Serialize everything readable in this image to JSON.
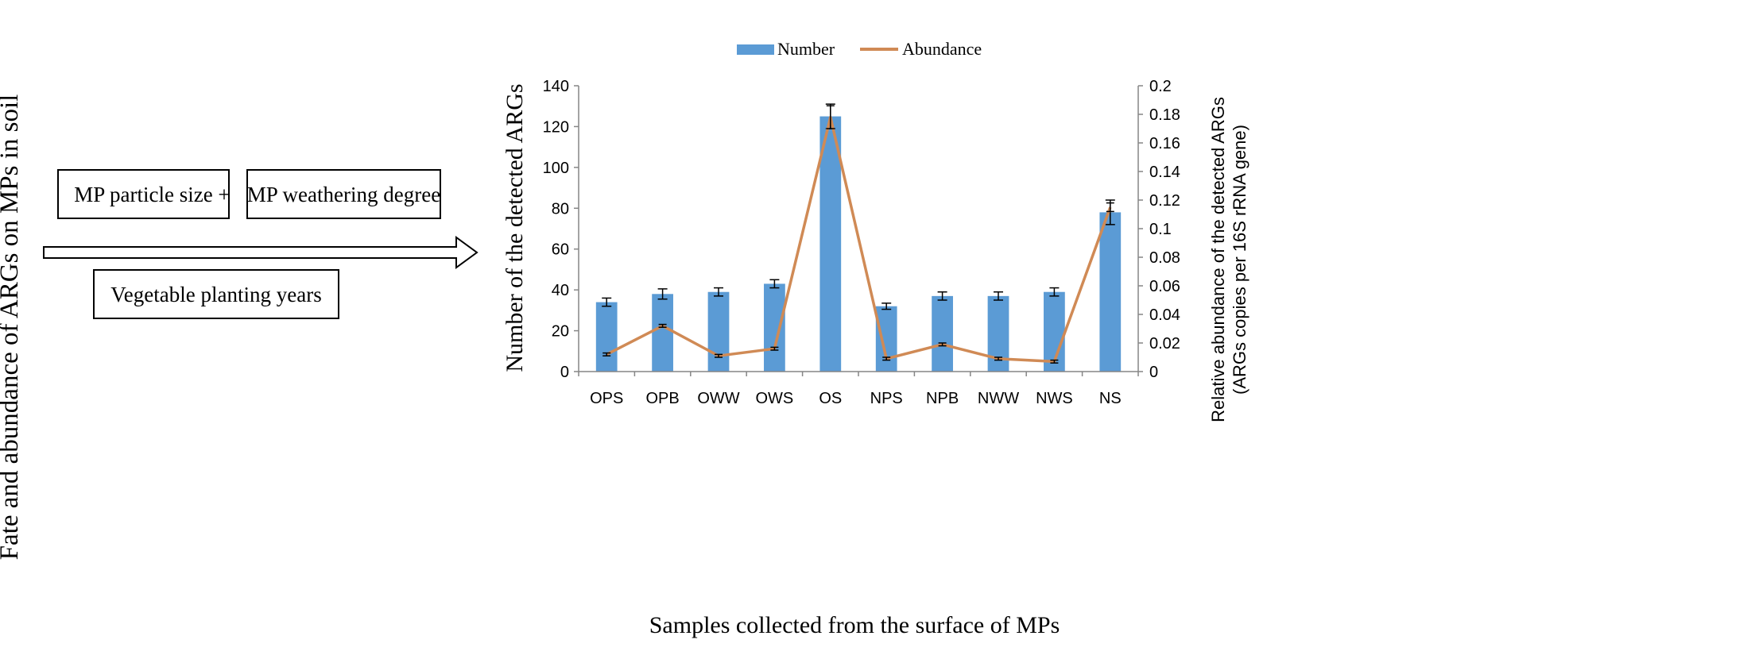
{
  "diagram": {
    "side_title": "Fate and abundance of ARGs on MPs in soil",
    "box1": "MP particle size",
    "plus": "+",
    "box2": "MP weathering degree",
    "box3": "Vegetable planting years"
  },
  "chart_data": {
    "type": "bar",
    "title": "",
    "xlabel": "Samples collected from the surface of MPs",
    "ylabel": "Number of the detected ARGs",
    "y2label_line1": "Relative abundance of the detected ARGs",
    "y2label_line2": "(ARGs copies per 16S rRNA gene)",
    "categories": [
      "OPS",
      "OPB",
      "OWW",
      "OWS",
      "OS",
      "NPS",
      "NPB",
      "NWW",
      "NWS",
      "NS"
    ],
    "ylim": [
      0,
      140
    ],
    "yticks": [
      0,
      20,
      40,
      60,
      80,
      100,
      120,
      140
    ],
    "y2lim": [
      0,
      0.2
    ],
    "y2ticks": [
      "0",
      "0.02",
      "0.04",
      "0.06",
      "0.08",
      "0.1",
      "0.12",
      "0.14",
      "0.16",
      "0.18",
      "0.2"
    ],
    "legend_position": "top",
    "series": [
      {
        "name": "Number",
        "kind": "bar",
        "axis": "left",
        "color": "#5b9bd5",
        "values": [
          34,
          38,
          39,
          43,
          125,
          32,
          37,
          37,
          39,
          78
        ],
        "errors": [
          2,
          2.5,
          2,
          2,
          6,
          1.5,
          2,
          2,
          2,
          6
        ]
      },
      {
        "name": "Abundance",
        "kind": "line",
        "axis": "right",
        "color": "#d08a55",
        "values": [
          0.012,
          0.032,
          0.011,
          0.016,
          0.178,
          0.009,
          0.019,
          0.009,
          0.007,
          0.115
        ],
        "errors": [
          0.001,
          0.001,
          0.001,
          0.001,
          0.008,
          0.001,
          0.001,
          0.001,
          0.001,
          0.003
        ]
      }
    ]
  }
}
